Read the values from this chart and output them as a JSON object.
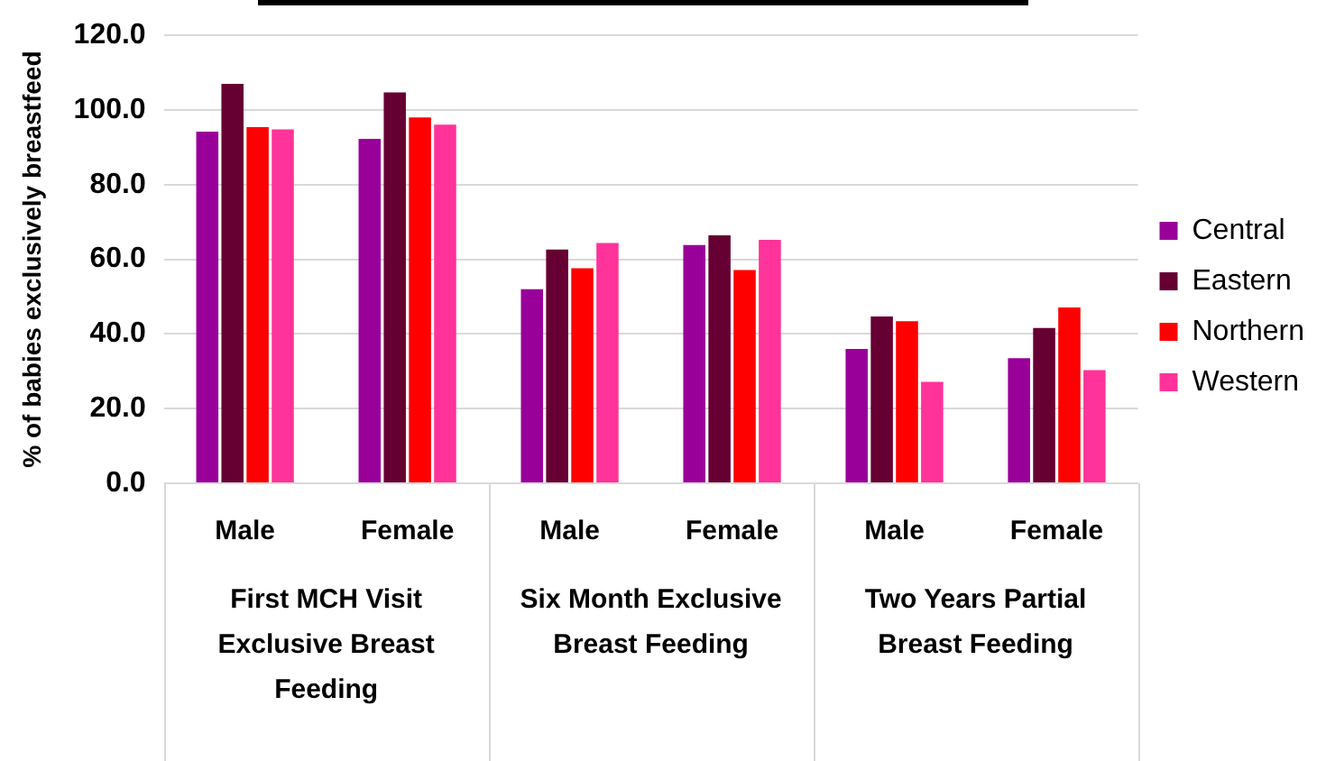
{
  "chart_data": {
    "type": "bar",
    "ylabel": "% of babies exclusively breastfeed",
    "categories": [
      "Male",
      "Female",
      "Male",
      "Female",
      "Male",
      "Female"
    ],
    "series": [
      {
        "name": "Central",
        "color": "#990099",
        "values": [
          94.2,
          92.3,
          52.0,
          63.8,
          36.0,
          33.5
        ]
      },
      {
        "name": "Eastern",
        "color": "#660033",
        "values": [
          107.0,
          104.7,
          62.6,
          66.4,
          44.7,
          41.6
        ]
      },
      {
        "name": "Northern",
        "color": "#ff0000",
        "values": [
          95.4,
          98.0,
          57.6,
          57.1,
          43.4,
          47.1
        ]
      },
      {
        "name": "Western",
        "color": "#ff3399",
        "values": [
          94.8,
          96.1,
          64.4,
          65.2,
          27.2,
          30.3
        ]
      }
    ],
    "ylim": [
      0,
      120
    ],
    "yticks": [
      {
        "value": 0,
        "label": "0.0"
      },
      {
        "value": 20,
        "label": "20.0"
      },
      {
        "value": 40,
        "label": "40.0"
      },
      {
        "value": 60,
        "label": "60.0"
      },
      {
        "value": 80,
        "label": "80.0"
      },
      {
        "value": 100,
        "label": "100.0"
      },
      {
        "value": 120,
        "label": "120.0"
      }
    ],
    "annotations": [
      "First MCH Visit Exclusive Breast Feeding",
      "Six Month Exclusive Breast Feeding",
      "Two Years Partial Breast Feeding"
    ],
    "grid": "y",
    "legend": "right"
  }
}
